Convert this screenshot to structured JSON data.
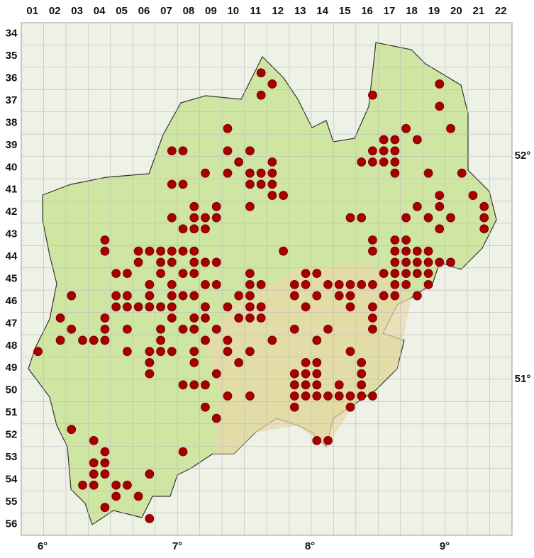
{
  "columns": [
    "01",
    "02",
    "03",
    "04",
    "05",
    "06",
    "07",
    "08",
    "09",
    "10",
    "11",
    "12",
    "13",
    "14",
    "15",
    "16",
    "17",
    "18",
    "19",
    "20",
    "21",
    "22"
  ],
  "rows": [
    "34",
    "35",
    "36",
    "37",
    "38",
    "39",
    "40",
    "41",
    "42",
    "43",
    "44",
    "45",
    "46",
    "47",
    "48",
    "49",
    "50",
    "51",
    "52",
    "53",
    "54",
    "55",
    "56"
  ],
  "longitudes": [
    "6°",
    "7°",
    "8°",
    "9°"
  ],
  "latitudes": [
    "52°",
    "51°"
  ],
  "occurrences": [
    [
      21,
      4
    ],
    [
      22,
      5
    ],
    [
      21,
      6
    ],
    [
      37,
      5
    ],
    [
      31,
      6
    ],
    [
      37,
      7
    ],
    [
      18,
      9
    ],
    [
      34,
      9
    ],
    [
      35,
      10
    ],
    [
      38,
      9
    ],
    [
      32,
      10
    ],
    [
      33,
      10
    ],
    [
      13,
      11
    ],
    [
      14,
      11
    ],
    [
      18,
      11
    ],
    [
      20,
      11
    ],
    [
      30,
      12
    ],
    [
      31,
      11
    ],
    [
      32,
      11
    ],
    [
      33,
      11
    ],
    [
      19,
      12
    ],
    [
      22,
      12
    ],
    [
      31,
      12
    ],
    [
      32,
      12
    ],
    [
      33,
      12
    ],
    [
      16,
      13
    ],
    [
      18,
      13
    ],
    [
      20,
      13
    ],
    [
      21,
      13
    ],
    [
      22,
      13
    ],
    [
      33,
      13
    ],
    [
      36,
      13
    ],
    [
      39,
      13
    ],
    [
      13,
      14
    ],
    [
      14,
      14
    ],
    [
      20,
      14
    ],
    [
      21,
      14
    ],
    [
      22,
      14
    ],
    [
      22,
      15
    ],
    [
      23,
      15
    ],
    [
      37,
      15
    ],
    [
      40,
      15
    ],
    [
      15,
      16
    ],
    [
      17,
      16
    ],
    [
      20,
      16
    ],
    [
      35,
      16
    ],
    [
      37,
      16
    ],
    [
      41,
      16
    ],
    [
      13,
      17
    ],
    [
      15,
      17
    ],
    [
      16,
      17
    ],
    [
      17,
      17
    ],
    [
      29,
      17
    ],
    [
      30,
      17
    ],
    [
      34,
      17
    ],
    [
      36,
      17
    ],
    [
      38,
      17
    ],
    [
      41,
      17
    ],
    [
      14,
      18
    ],
    [
      15,
      18
    ],
    [
      16,
      18
    ],
    [
      37,
      18
    ],
    [
      41,
      18
    ],
    [
      7,
      19
    ],
    [
      31,
      19
    ],
    [
      33,
      19
    ],
    [
      34,
      19
    ],
    [
      7,
      20
    ],
    [
      10,
      20
    ],
    [
      11,
      20
    ],
    [
      12,
      20
    ],
    [
      13,
      20
    ],
    [
      14,
      20
    ],
    [
      15,
      20
    ],
    [
      23,
      20
    ],
    [
      31,
      20
    ],
    [
      33,
      20
    ],
    [
      34,
      20
    ],
    [
      35,
      20
    ],
    [
      36,
      20
    ],
    [
      10,
      21
    ],
    [
      12,
      21
    ],
    [
      13,
      21
    ],
    [
      15,
      21
    ],
    [
      16,
      21
    ],
    [
      17,
      21
    ],
    [
      33,
      21
    ],
    [
      34,
      21
    ],
    [
      35,
      21
    ],
    [
      36,
      21
    ],
    [
      37,
      21
    ],
    [
      38,
      21
    ],
    [
      8,
      22
    ],
    [
      9,
      22
    ],
    [
      12,
      22
    ],
    [
      14,
      22
    ],
    [
      15,
      22
    ],
    [
      20,
      22
    ],
    [
      25,
      22
    ],
    [
      26,
      22
    ],
    [
      32,
      22
    ],
    [
      33,
      22
    ],
    [
      34,
      22
    ],
    [
      35,
      22
    ],
    [
      36,
      22
    ],
    [
      11,
      23
    ],
    [
      13,
      23
    ],
    [
      16,
      23
    ],
    [
      17,
      23
    ],
    [
      20,
      23
    ],
    [
      21,
      23
    ],
    [
      24,
      23
    ],
    [
      25,
      23
    ],
    [
      27,
      23
    ],
    [
      28,
      23
    ],
    [
      29,
      23
    ],
    [
      30,
      23
    ],
    [
      31,
      23
    ],
    [
      33,
      23
    ],
    [
      34,
      23
    ],
    [
      36,
      23
    ],
    [
      4,
      24
    ],
    [
      8,
      24
    ],
    [
      9,
      24
    ],
    [
      11,
      24
    ],
    [
      13,
      24
    ],
    [
      14,
      24
    ],
    [
      15,
      24
    ],
    [
      19,
      24
    ],
    [
      20,
      24
    ],
    [
      24,
      24
    ],
    [
      26,
      24
    ],
    [
      28,
      24
    ],
    [
      29,
      24
    ],
    [
      32,
      24
    ],
    [
      33,
      24
    ],
    [
      35,
      24
    ],
    [
      8,
      25
    ],
    [
      9,
      25
    ],
    [
      10,
      25
    ],
    [
      11,
      25
    ],
    [
      12,
      25
    ],
    [
      13,
      25
    ],
    [
      16,
      25
    ],
    [
      18,
      25
    ],
    [
      20,
      25
    ],
    [
      21,
      25
    ],
    [
      25,
      25
    ],
    [
      29,
      25
    ],
    [
      31,
      25
    ],
    [
      3,
      26
    ],
    [
      13,
      26
    ],
    [
      15,
      26
    ],
    [
      16,
      26
    ],
    [
      19,
      26
    ],
    [
      20,
      26
    ],
    [
      21,
      26
    ],
    [
      31,
      26
    ],
    [
      7,
      26
    ],
    [
      4,
      27
    ],
    [
      7,
      27
    ],
    [
      9,
      27
    ],
    [
      12,
      27
    ],
    [
      14,
      27
    ],
    [
      15,
      27
    ],
    [
      17,
      27
    ],
    [
      24,
      27
    ],
    [
      27,
      27
    ],
    [
      31,
      27
    ],
    [
      7,
      28
    ],
    [
      12,
      28
    ],
    [
      16,
      28
    ],
    [
      18,
      28
    ],
    [
      22,
      28
    ],
    [
      26,
      28
    ],
    [
      5,
      28
    ],
    [
      3,
      28
    ],
    [
      6,
      28
    ],
    [
      1,
      29
    ],
    [
      9,
      29
    ],
    [
      11,
      29
    ],
    [
      12,
      29
    ],
    [
      13,
      29
    ],
    [
      15,
      29
    ],
    [
      18,
      29
    ],
    [
      20,
      29
    ],
    [
      29,
      29
    ],
    [
      25,
      30
    ],
    [
      26,
      30
    ],
    [
      11,
      30
    ],
    [
      15,
      30
    ],
    [
      19,
      30
    ],
    [
      30,
      30
    ],
    [
      11,
      31
    ],
    [
      17,
      31
    ],
    [
      24,
      31
    ],
    [
      25,
      31
    ],
    [
      26,
      31
    ],
    [
      30,
      31
    ],
    [
      14,
      32
    ],
    [
      15,
      32
    ],
    [
      16,
      32
    ],
    [
      24,
      32
    ],
    [
      25,
      32
    ],
    [
      26,
      32
    ],
    [
      28,
      32
    ],
    [
      30,
      32
    ],
    [
      18,
      33
    ],
    [
      20,
      33
    ],
    [
      24,
      33
    ],
    [
      25,
      33
    ],
    [
      26,
      33
    ],
    [
      27,
      33
    ],
    [
      28,
      33
    ],
    [
      29,
      33
    ],
    [
      30,
      33
    ],
    [
      31,
      33
    ],
    [
      16,
      34
    ],
    [
      24,
      34
    ],
    [
      29,
      34
    ],
    [
      17,
      35
    ],
    [
      4,
      36
    ],
    [
      26,
      37
    ],
    [
      27,
      37
    ],
    [
      6,
      37
    ],
    [
      14,
      38
    ],
    [
      7,
      38
    ],
    [
      6,
      39
    ],
    [
      7,
      39
    ],
    [
      6,
      40
    ],
    [
      7,
      40
    ],
    [
      11,
      40
    ],
    [
      8,
      41
    ],
    [
      5,
      41
    ],
    [
      6,
      41
    ],
    [
      9,
      41
    ],
    [
      10,
      42
    ],
    [
      8,
      42
    ],
    [
      7,
      43
    ],
    [
      11,
      44
    ]
  ]
}
